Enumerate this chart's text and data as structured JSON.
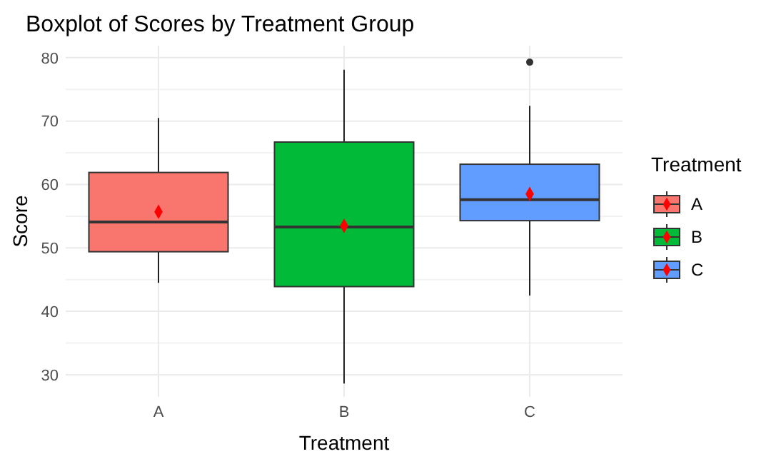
{
  "chart_data": {
    "type": "box",
    "title": "Boxplot of Scores by Treatment Group",
    "xlabel": "Treatment",
    "ylabel": "Score",
    "legend_title": "Treatment",
    "categories": [
      "A",
      "B",
      "C"
    ],
    "series": [
      {
        "name": "A",
        "color": "#f8766d",
        "boxes": [
          {
            "low": 44.5,
            "q1": 49.4,
            "median": 54.1,
            "q3": 61.9,
            "high": 70.5,
            "mean": 55.7
          },
          null,
          null
        ]
      },
      {
        "name": "B",
        "color": "#00ba38",
        "boxes": [
          null,
          {
            "low": 28.6,
            "q1": 43.9,
            "median": 53.3,
            "q3": 66.7,
            "high": 78.1,
            "mean": 53.5
          },
          null
        ]
      },
      {
        "name": "C",
        "color": "#619cff",
        "boxes": [
          null,
          null,
          {
            "low": 42.5,
            "q1": 54.3,
            "median": 57.6,
            "q3": 63.2,
            "high": 72.4,
            "mean": 58.5,
            "outliers": [
              79.3
            ]
          }
        ]
      }
    ],
    "ylim": [
      26.5,
      81.9
    ],
    "yticks": [
      30,
      40,
      50,
      60,
      70,
      80
    ],
    "grid": true,
    "legend": "right"
  }
}
